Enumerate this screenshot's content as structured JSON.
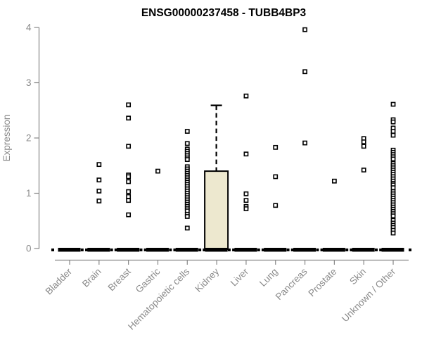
{
  "title": "ENSG00000237458 - TUBB4BP3",
  "y_axis": {
    "label": "Expression"
  },
  "chart_data": {
    "type": "boxplot",
    "title": "ENSG00000237458 - TUBB4BP3",
    "xlabel": "",
    "ylabel": "Expression",
    "ylim": [
      0,
      4
    ],
    "yticks": [
      0,
      1,
      2,
      3,
      4
    ],
    "grid": false,
    "legend": "none",
    "categories": [
      "Bladder",
      "Brain",
      "Breast",
      "Gastric",
      "Hematopoietic cells",
      "Kidney",
      "Liver",
      "Lung",
      "Pancreas",
      "Prostate",
      "Skin",
      "Unknown / Other"
    ],
    "series": [
      {
        "name": "Bladder",
        "box": {
          "low": 0,
          "q1": 0,
          "median": 0,
          "q3": 0,
          "high": 0
        },
        "outliers": []
      },
      {
        "name": "Brain",
        "box": {
          "low": 0,
          "q1": 0,
          "median": 0,
          "q3": 0,
          "high": 0
        },
        "outliers": [
          1.52,
          1.24,
          1.04,
          0.86
        ]
      },
      {
        "name": "Breast",
        "box": {
          "low": 0,
          "q1": 0,
          "median": 0,
          "q3": 0,
          "high": 0
        },
        "outliers": [
          2.6,
          2.36,
          1.85,
          1.33,
          1.3,
          1.21,
          1.03,
          0.94,
          0.87,
          0.61
        ]
      },
      {
        "name": "Gastric",
        "box": {
          "low": 0,
          "q1": 0,
          "median": 0,
          "q3": 0,
          "high": 0
        },
        "outliers": [
          1.4
        ]
      },
      {
        "name": "Hematopoietic cells",
        "box": {
          "low": 0,
          "q1": 0,
          "median": 0,
          "q3": 0,
          "high": 0
        },
        "outliers": [
          2.12,
          1.9,
          1.8,
          1.76,
          1.72,
          1.68,
          1.64,
          1.61,
          1.48,
          1.44,
          1.4,
          1.36,
          1.32,
          1.28,
          1.24,
          1.2,
          1.16,
          1.12,
          1.08,
          1.04,
          1.0,
          0.96,
          0.92,
          0.88,
          0.84,
          0.8,
          0.76,
          0.72,
          0.68,
          0.62,
          0.58,
          0.37
        ]
      },
      {
        "name": "Kidney",
        "box": {
          "low": 0,
          "q1": 0,
          "median": 0,
          "q3": 1.4,
          "high": 2.59
        },
        "outliers": []
      },
      {
        "name": "Liver",
        "box": {
          "low": 0,
          "q1": 0,
          "median": 0,
          "q3": 0,
          "high": 0
        },
        "outliers": [
          2.76,
          1.71,
          0.99,
          0.87,
          0.76,
          0.72
        ]
      },
      {
        "name": "Lung",
        "box": {
          "low": 0,
          "q1": 0,
          "median": 0,
          "q3": 0,
          "high": 0
        },
        "outliers": [
          1.83,
          1.3,
          0.78
        ]
      },
      {
        "name": "Pancreas",
        "box": {
          "low": 0,
          "q1": 0,
          "median": 0,
          "q3": 0,
          "high": 0
        },
        "outliers": [
          3.96,
          3.2,
          1.91
        ]
      },
      {
        "name": "Prostate",
        "box": {
          "low": 0,
          "q1": 0,
          "median": 0,
          "q3": 0,
          "high": 0
        },
        "outliers": [
          1.22
        ]
      },
      {
        "name": "Skin",
        "box": {
          "low": 0,
          "q1": 0,
          "median": 0,
          "q3": 0,
          "high": 0
        },
        "outliers": [
          1.99,
          1.93,
          1.85,
          1.42
        ]
      },
      {
        "name": "Unknown / Other",
        "box": {
          "low": 0,
          "q1": 0,
          "median": 0,
          "q3": 0,
          "high": 0
        },
        "outliers": [
          2.61,
          2.33,
          2.29,
          2.18,
          2.12,
          2.05,
          1.78,
          1.74,
          1.7,
          1.66,
          1.62,
          1.54,
          1.5,
          1.46,
          1.42,
          1.38,
          1.34,
          1.3,
          1.26,
          1.22,
          1.18,
          1.15,
          1.1,
          1.03,
          0.99,
          0.95,
          0.91,
          0.87,
          0.83,
          0.79,
          0.75,
          0.71,
          0.67,
          0.63,
          0.59,
          0.51,
          0.46,
          0.42,
          0.38,
          0.33,
          0.28
        ]
      }
    ]
  },
  "colors": {
    "box_fill": "#EDE8CF",
    "box_stroke": "#000000",
    "point_stroke": "#000000",
    "point_fill": "#FFFFFF",
    "axis": "#878787",
    "tick_label": "#8A8A8A",
    "title_text": "#000000",
    "background": "#FFFFFF"
  }
}
